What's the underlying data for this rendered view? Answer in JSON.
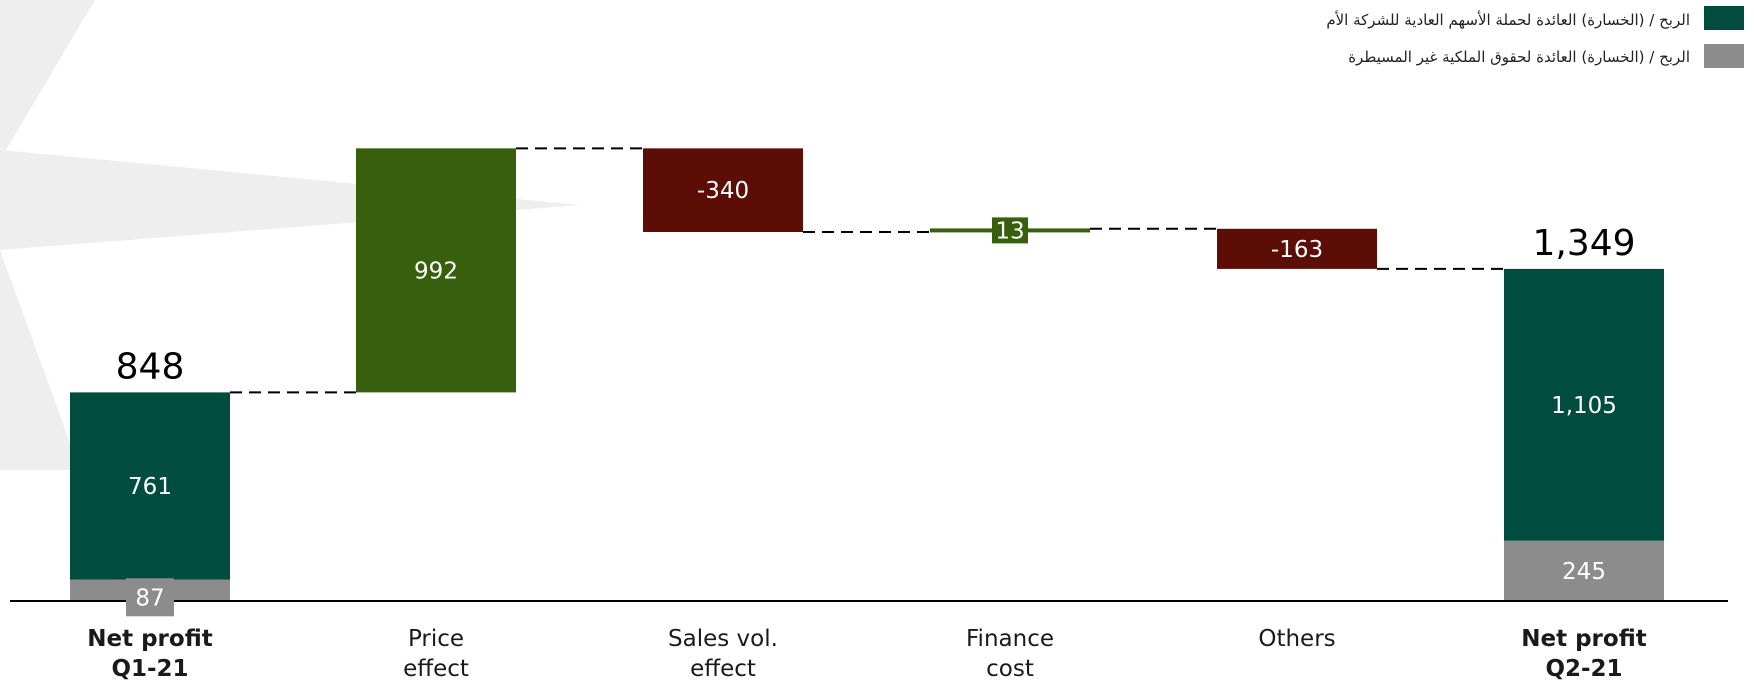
{
  "colors": {
    "parent": "#004d40",
    "nci": "#8c8c8c",
    "increase": "#375f0d",
    "decrease": "#5c0d05",
    "connector": "#000000",
    "background_star": "#eeeeee"
  },
  "legend": {
    "items": [
      {
        "label": "الربح / (الخسارة) العائدة لحملة الأسهم العادية للشركة الأم",
        "color": "#004d40"
      },
      {
        "label": "الربح / (الخسارة) العائدة لحقوق الملكية غير المسيطرة",
        "color": "#8c8c8c"
      }
    ],
    "placement": "top-right"
  },
  "chart_data": {
    "type": "bar",
    "subtype": "waterfall",
    "categories": [
      [
        "Net profit",
        "Q1-21"
      ],
      [
        "Price",
        "effect"
      ],
      [
        "Sales vol.",
        "effect"
      ],
      [
        "Finance",
        "cost"
      ],
      [
        "Others",
        ""
      ],
      [
        "Net profit",
        "Q2-21"
      ]
    ],
    "bold_categories": [
      0,
      5
    ],
    "bars": [
      {
        "kind": "total",
        "total_label": "848",
        "total": 848,
        "segments": [
          {
            "series": "nci",
            "value": 87,
            "label": "87"
          },
          {
            "series": "parent",
            "value": 761,
            "label": "761"
          }
        ]
      },
      {
        "kind": "delta",
        "value": 992,
        "label": "992",
        "series": "increase"
      },
      {
        "kind": "delta",
        "value": -340,
        "label": "-340",
        "series": "decrease"
      },
      {
        "kind": "delta",
        "value": 13,
        "label": "13",
        "series": "increase"
      },
      {
        "kind": "delta",
        "value": -163,
        "label": "-163",
        "series": "decrease"
      },
      {
        "kind": "total",
        "total_label": "1,349",
        "total": 1349,
        "segments": [
          {
            "series": "nci",
            "value": 245,
            "label": "245"
          },
          {
            "series": "parent",
            "value": 1105,
            "label": "1,105"
          }
        ]
      }
    ],
    "ylim": [
      0,
      1840
    ],
    "grid": false,
    "title": "",
    "xlabel": "",
    "ylabel": ""
  }
}
